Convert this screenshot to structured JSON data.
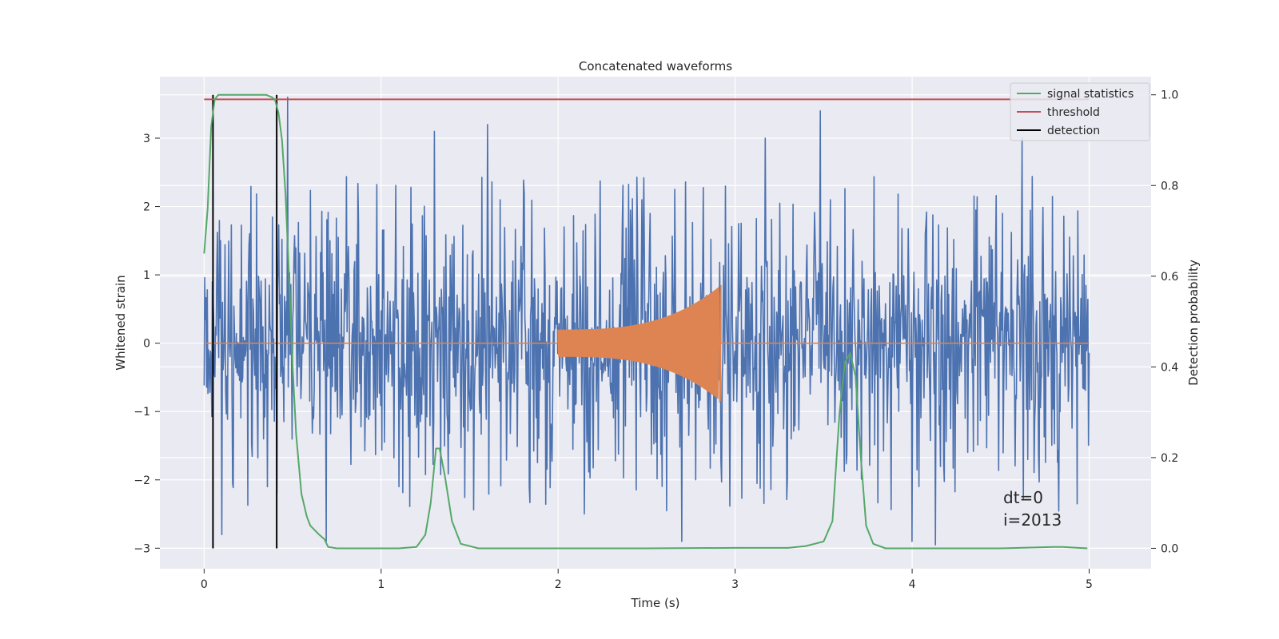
{
  "chart_data": {
    "type": "line",
    "title": "Concatenated waveforms",
    "xlabel": "Time (s)",
    "ylabel": "Whitened strain",
    "y2label": "Detection probability",
    "xlim": [
      -0.25,
      5.35
    ],
    "ylim": [
      -3.3,
      3.9
    ],
    "y2lim": [
      -0.045,
      1.04
    ],
    "xticks": [
      0,
      1,
      2,
      3,
      4,
      5
    ],
    "yticks": [
      -3,
      -2,
      -1,
      0,
      1,
      2,
      3
    ],
    "yticklabels": [
      "−3",
      "−2",
      "−1",
      "0",
      "1",
      "2",
      "3"
    ],
    "y2ticks": [
      0.0,
      0.2,
      0.4,
      0.6,
      0.8,
      1.0
    ],
    "y2ticklabels": [
      "0.0",
      "0.2",
      "0.4",
      "0.6",
      "0.8",
      "1.0"
    ],
    "grid": true,
    "legend_position": "top-right",
    "legend": [
      {
        "label": "signal statistics",
        "color": "#55a868"
      },
      {
        "label": "threshold",
        "color": "#c44e52"
      },
      {
        "label": "detection",
        "color": "#000000"
      }
    ],
    "series": [
      {
        "role": "whitened strain",
        "color": "#4c72b0",
        "x_range": [
          0,
          5
        ],
        "typical_amplitude": 1.4,
        "peaks": [
          {
            "x": 0.47,
            "y": 3.6
          },
          {
            "x": 1.6,
            "y": 3.2
          },
          {
            "x": 1.3,
            "y": 3.1
          },
          {
            "x": 3.48,
            "y": 3.4
          },
          {
            "x": 4.62,
            "y": 3.0
          },
          {
            "x": 3.17,
            "y": 3.0
          },
          {
            "x": 0.1,
            "y": -2.8
          },
          {
            "x": 0.69,
            "y": -2.9
          },
          {
            "x": 2.7,
            "y": -2.9
          },
          {
            "x": 4.0,
            "y": -2.9
          },
          {
            "x": 4.13,
            "y": -2.95
          },
          {
            "x": 0.41,
            "y": -2.2
          }
        ]
      },
      {
        "role": "injected waveform",
        "color": "#dd8452",
        "x_range": [
          0,
          5
        ],
        "chirp_start": 2.0,
        "chirp_end": 2.92,
        "start_amplitude": 0.2,
        "peak_max": 0.7,
        "peak_min": -0.85
      },
      {
        "name": "signal statistics",
        "color": "#55a868",
        "x": [
          0,
          0.02,
          0.04,
          0.06,
          0.08,
          0.1,
          0.15,
          0.2,
          0.3,
          0.35,
          0.38,
          0.4,
          0.42,
          0.44,
          0.46,
          0.48,
          0.5,
          0.52,
          0.55,
          0.58,
          0.6,
          0.65,
          0.68,
          0.7,
          0.75,
          0.9,
          1.1,
          1.2,
          1.25,
          1.28,
          1.31,
          1.33,
          1.36,
          1.4,
          1.45,
          1.55,
          2.0,
          2.5,
          3.0,
          3.3,
          3.4,
          3.5,
          3.55,
          3.59,
          3.62,
          3.65,
          3.68,
          3.71,
          3.74,
          3.78,
          3.85,
          4.0,
          4.5,
          4.8,
          4.85,
          4.99
        ],
        "y": [
          0.65,
          0.75,
          0.93,
          0.99,
          1.0,
          1.0,
          1.0,
          1.0,
          1.0,
          1.0,
          0.995,
          0.99,
          0.96,
          0.9,
          0.78,
          0.6,
          0.4,
          0.25,
          0.12,
          0.07,
          0.05,
          0.03,
          0.02,
          0.003,
          0.0,
          0.0,
          0.0,
          0.003,
          0.03,
          0.1,
          0.22,
          0.22,
          0.16,
          0.06,
          0.01,
          0.0,
          0.0,
          0.0,
          0.001,
          0.001,
          0.005,
          0.015,
          0.06,
          0.3,
          0.41,
          0.43,
          0.38,
          0.2,
          0.05,
          0.01,
          0.0,
          0.0,
          0.0,
          0.003,
          0.003,
          0.0
        ]
      },
      {
        "name": "threshold",
        "color": "#c44e52",
        "x": [
          0,
          5
        ],
        "y": [
          0.99,
          0.99
        ]
      },
      {
        "name": "detection",
        "color": "#000000",
        "x": [
          0.05,
          0.41
        ],
        "y_range": [
          0.0,
          1.0
        ]
      }
    ],
    "annotations": [
      {
        "text": "dt=0",
        "x": 4.5,
        "y": -2.2
      },
      {
        "text": "i=2013",
        "x": 4.5,
        "y": -2.55
      }
    ]
  }
}
